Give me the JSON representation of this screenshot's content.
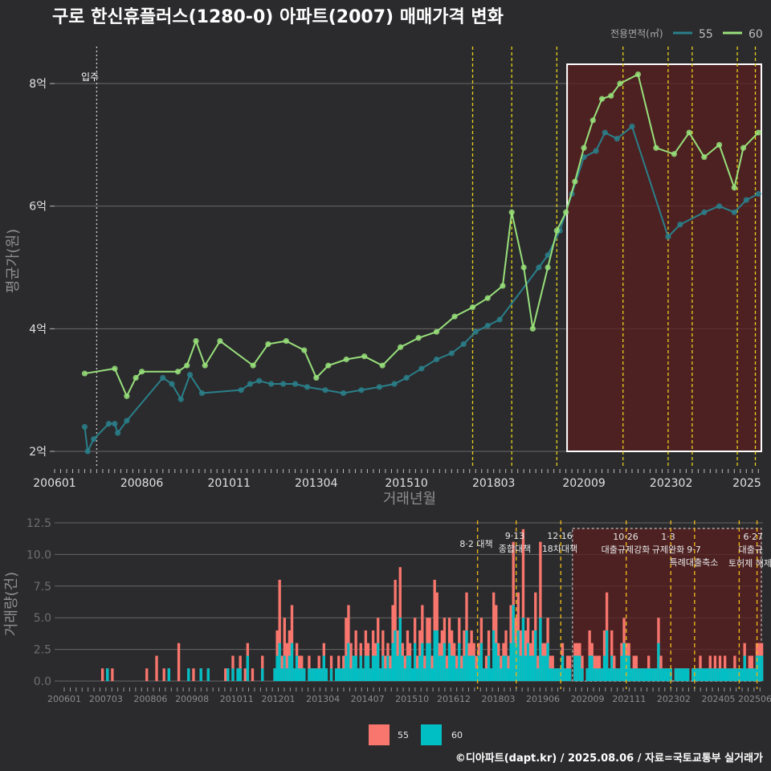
{
  "title": "구로 한신휴플러스(1280-0) 아파트(2007) 매매가격 변화",
  "footer": "©디아파트(dapt.kr) / 2025.08.06 / 자료=국토교통부 실거래가",
  "colors": {
    "bg": "#2b2b2d",
    "series55_line": "#2a7f8a",
    "series60_line": "#98e07a",
    "bar55": "#f8766d",
    "bar60": "#00bfc4",
    "policy_line": "#e6d11a",
    "highlight": "#5a1f1f"
  },
  "chart_data": [
    {
      "type": "line",
      "title": "구로 한신휴플러스(1280-0) 아파트(2007) 매매가격 변화",
      "xlabel": "거래년월",
      "ylabel": "평균가(원)",
      "x_ticks": [
        "200601",
        "200806",
        "201011",
        "201304",
        "201510",
        "201803",
        "202009",
        "202302",
        "2025"
      ],
      "y_ticks": [
        "2억",
        "4억",
        "6억",
        "8억"
      ],
      "ylim": [
        2,
        8.6
      ],
      "y_unit": "억",
      "legend": {
        "title": "전용면적(㎡)",
        "position": "top-right",
        "entries": [
          "55",
          "60"
        ]
      },
      "vlines": [
        {
          "date": "2007-03",
          "label": "입주",
          "style": "dotted-white"
        },
        {
          "date": "2017-08",
          "style": "dashed-yellow"
        },
        {
          "date": "2018-09",
          "style": "dashed-yellow"
        },
        {
          "date": "2019-12",
          "style": "dashed-yellow"
        },
        {
          "date": "2021-10",
          "style": "dashed-yellow"
        },
        {
          "date": "2023-01",
          "style": "dashed-yellow"
        },
        {
          "date": "2023-09",
          "style": "dashed-yellow"
        },
        {
          "date": "2024-12",
          "style": "dashed-yellow"
        },
        {
          "date": "2025-06",
          "style": "dashed-yellow"
        }
      ],
      "highlight_range": [
        "2020-05",
        "2025-08"
      ],
      "series": [
        {
          "name": "55",
          "points": [
            [
              "2006-11",
              2.4
            ],
            [
              "2006-12",
              2.0
            ],
            [
              "2007-02",
              2.2
            ],
            [
              "2007-07",
              2.45
            ],
            [
              "2007-09",
              2.45
            ],
            [
              "2007-10",
              2.3
            ],
            [
              "2008-01",
              2.5
            ],
            [
              "2009-01",
              3.2
            ],
            [
              "2009-04",
              3.1
            ],
            [
              "2009-07",
              2.85
            ],
            [
              "2009-10",
              3.25
            ],
            [
              "2010-02",
              2.95
            ],
            [
              "2011-03",
              3.0
            ],
            [
              "2011-06",
              3.1
            ],
            [
              "2011-09",
              3.15
            ],
            [
              "2012-01",
              3.1
            ],
            [
              "2012-05",
              3.1
            ],
            [
              "2012-09",
              3.1
            ],
            [
              "2013-01",
              3.05
            ],
            [
              "2013-07",
              3.0
            ],
            [
              "2014-01",
              2.95
            ],
            [
              "2014-07",
              3.0
            ],
            [
              "2015-01",
              3.05
            ],
            [
              "2015-06",
              3.1
            ],
            [
              "2015-10",
              3.2
            ],
            [
              "2016-03",
              3.35
            ],
            [
              "2016-08",
              3.5
            ],
            [
              "2017-01",
              3.6
            ],
            [
              "2017-05",
              3.75
            ],
            [
              "2017-09",
              3.95
            ],
            [
              "2018-01",
              4.05
            ],
            [
              "2018-05",
              4.15
            ],
            [
              "2019-06",
              5.0
            ],
            [
              "2019-09",
              5.2
            ],
            [
              "2020-01",
              5.6
            ],
            [
              "2020-05",
              6.2
            ],
            [
              "2020-09",
              6.8
            ],
            [
              "2021-01",
              6.9
            ],
            [
              "2021-04",
              7.2
            ],
            [
              "2021-08",
              7.1
            ],
            [
              "2022-01",
              7.3
            ],
            [
              "2023-01",
              5.5
            ],
            [
              "2023-05",
              5.7
            ],
            [
              "2024-01",
              5.9
            ],
            [
              "2024-06",
              6.0
            ],
            [
              "2024-11",
              5.9
            ],
            [
              "2025-03",
              6.1
            ],
            [
              "2025-07",
              6.2
            ]
          ]
        },
        {
          "name": "60",
          "points": [
            [
              "2006-11",
              3.27
            ],
            [
              "2007-09",
              3.35
            ],
            [
              "2008-01",
              2.9
            ],
            [
              "2008-04",
              3.2
            ],
            [
              "2008-06",
              3.3
            ],
            [
              "2009-06",
              3.3
            ],
            [
              "2009-09",
              3.4
            ],
            [
              "2009-12",
              3.8
            ],
            [
              "2010-03",
              3.4
            ],
            [
              "2010-08",
              3.8
            ],
            [
              "2011-07",
              3.4
            ],
            [
              "2011-12",
              3.75
            ],
            [
              "2012-06",
              3.8
            ],
            [
              "2012-12",
              3.65
            ],
            [
              "2013-04",
              3.2
            ],
            [
              "2013-08",
              3.4
            ],
            [
              "2014-02",
              3.5
            ],
            [
              "2014-08",
              3.55
            ],
            [
              "2015-02",
              3.4
            ],
            [
              "2015-08",
              3.7
            ],
            [
              "2016-02",
              3.85
            ],
            [
              "2016-08",
              3.95
            ],
            [
              "2017-02",
              4.2
            ],
            [
              "2017-08",
              4.35
            ],
            [
              "2018-01",
              4.5
            ],
            [
              "2018-06",
              4.7
            ],
            [
              "2018-09",
              5.9
            ],
            [
              "2019-01",
              5.0
            ],
            [
              "2019-04",
              4.0
            ],
            [
              "2019-09",
              5.0
            ],
            [
              "2019-12",
              5.6
            ],
            [
              "2020-03",
              5.9
            ],
            [
              "2020-06",
              6.4
            ],
            [
              "2020-09",
              6.95
            ],
            [
              "2020-12",
              7.4
            ],
            [
              "2021-03",
              7.75
            ],
            [
              "2021-06",
              7.8
            ],
            [
              "2021-09",
              8.0
            ],
            [
              "2022-03",
              8.15
            ],
            [
              "2022-09",
              6.95
            ],
            [
              "2023-03",
              6.85
            ],
            [
              "2023-08",
              7.2
            ],
            [
              "2024-01",
              6.8
            ],
            [
              "2024-06",
              7.0
            ],
            [
              "2024-11",
              6.3
            ],
            [
              "2025-02",
              6.95
            ],
            [
              "2025-07",
              7.2
            ]
          ]
        }
      ]
    },
    {
      "type": "bar",
      "ylabel": "거래량(건)",
      "y_ticks": [
        "0.0",
        "2.5",
        "5.0",
        "7.5",
        "10.0",
        "12.5"
      ],
      "ylim": [
        0,
        12.5
      ],
      "x_ticks": [
        "200601",
        "200703",
        "200806",
        "200908",
        "201011",
        "201201",
        "201304",
        "201407",
        "201510",
        "201612",
        "201803",
        "201906",
        "202009",
        "202111",
        "202302",
        "202405",
        "202506"
      ],
      "legend": {
        "position": "bottom",
        "entries": [
          "55",
          "60"
        ]
      },
      "policy_annotations": [
        {
          "date": "2017-08",
          "lines": [
            "8·2 대책"
          ]
        },
        {
          "date": "2018-09",
          "lines": [
            "9·13",
            "종합대책"
          ]
        },
        {
          "date": "2019-12",
          "lines": [
            "12·16",
            "18차대책"
          ]
        },
        {
          "date": "2021-10",
          "lines": [
            "10·26",
            "대출규제강화"
          ]
        },
        {
          "date": "2023-01",
          "lines": [
            "1·3",
            "규제완화"
          ]
        },
        {
          "date": "2023-09",
          "lines": [
            "9·7",
            "특례대출축소"
          ]
        },
        {
          "date": "2024-12",
          "lines": [
            "토허제 해제"
          ]
        },
        {
          "date": "2025-06",
          "lines": [
            "6·27",
            "대출규"
          ]
        }
      ],
      "series": [
        {
          "name": "55",
          "monthly_counts_note": "monthly transaction counts (estimated)",
          "values_key": "bars55"
        },
        {
          "name": "60",
          "values_key": "bars60"
        }
      ],
      "bars55": [
        0,
        0,
        0,
        0,
        0,
        0,
        0,
        0,
        0,
        0,
        0,
        0,
        0,
        0,
        0,
        1,
        0,
        1,
        0,
        1,
        0,
        0,
        0,
        0,
        0,
        0,
        0,
        0,
        0,
        0,
        0,
        0,
        0,
        1,
        0,
        0,
        0,
        2,
        0,
        0,
        1,
        0,
        1,
        0,
        0,
        0,
        3,
        0,
        0,
        0,
        1,
        0,
        1,
        0,
        0,
        1,
        0,
        0,
        1,
        0,
        0,
        0,
        0,
        0,
        0,
        1,
        1,
        0,
        2,
        0,
        1,
        2,
        0,
        1,
        3,
        0,
        1,
        0,
        0,
        0,
        2,
        0,
        0,
        0,
        0,
        1,
        4,
        8,
        2,
        5,
        3,
        4,
        6,
        1,
        3,
        2,
        2,
        1,
        0,
        2,
        1,
        1,
        1,
        2,
        1,
        3,
        1,
        0,
        2,
        0,
        1,
        2,
        1,
        2,
        5,
        6,
        3,
        2,
        4,
        1,
        3,
        1,
        4,
        3,
        1,
        4,
        3,
        5,
        1,
        4,
        2,
        3,
        2,
        6,
        8,
        4,
        9,
        3,
        2,
        4,
        3,
        1,
        5,
        2,
        4,
        6,
        2,
        5,
        5,
        2,
        8,
        7,
        3,
        4,
        5,
        2,
        5,
        4,
        3,
        2,
        5,
        2,
        4,
        7,
        3,
        4,
        3,
        2,
        3,
        5,
        1,
        2,
        4,
        1,
        7,
        6,
        3,
        2,
        3,
        4,
        2,
        6,
        11,
        5,
        7,
        4,
        12,
        4,
        5,
        3,
        4,
        7,
        2,
        11,
        3,
        3,
        5,
        2,
        2,
        1,
        1,
        1,
        3,
        1,
        2,
        2,
        0,
        3,
        3,
        3,
        2,
        0,
        1,
        4,
        3,
        2,
        2,
        2,
        1,
        4,
        7,
        1,
        4,
        2,
        1,
        1,
        3,
        5,
        3,
        3,
        1,
        2,
        2,
        1,
        1,
        1,
        1,
        2,
        1,
        1,
        1,
        5,
        2,
        1,
        1,
        1,
        1,
        0,
        1,
        1,
        1,
        1,
        1,
        1,
        0,
        1,
        1,
        1,
        2,
        1,
        1,
        1,
        2,
        1,
        2,
        1,
        2,
        1,
        2,
        1,
        1,
        1,
        2,
        1,
        1,
        1,
        3,
        1,
        2,
        2,
        1,
        3,
        3,
        3
      ],
      "bars60": [
        0,
        0,
        0,
        0,
        0,
        0,
        0,
        0,
        0,
        0,
        0,
        0,
        0,
        0,
        0,
        0,
        0,
        1,
        0,
        0,
        0,
        0,
        0,
        0,
        0,
        0,
        0,
        0,
        0,
        0,
        0,
        0,
        0,
        0,
        0,
        0,
        0,
        0,
        0,
        0,
        0,
        0,
        1,
        0,
        0,
        0,
        0,
        0,
        0,
        0,
        1,
        0,
        0,
        0,
        0,
        1,
        0,
        0,
        1,
        0,
        0,
        0,
        0,
        0,
        0,
        0,
        1,
        0,
        1,
        0,
        1,
        1,
        0,
        0,
        2,
        0,
        0,
        0,
        0,
        0,
        1,
        0,
        0,
        0,
        0,
        1,
        2,
        3,
        1,
        2,
        1,
        2,
        3,
        1,
        2,
        1,
        1,
        1,
        0,
        1,
        1,
        1,
        1,
        1,
        1,
        2,
        1,
        0,
        1,
        0,
        1,
        1,
        1,
        1,
        2,
        3,
        1,
        2,
        2,
        1,
        2,
        1,
        2,
        2,
        1,
        2,
        2,
        3,
        1,
        2,
        1,
        2,
        1,
        3,
        4,
        2,
        5,
        2,
        1,
        2,
        2,
        1,
        3,
        1,
        2,
        3,
        1,
        3,
        3,
        1,
        4,
        4,
        2,
        2,
        3,
        1,
        3,
        2,
        2,
        1,
        3,
        1,
        2,
        4,
        2,
        2,
        2,
        1,
        2,
        3,
        1,
        1,
        2,
        1,
        4,
        3,
        2,
        1,
        2,
        2,
        1,
        3,
        6,
        3,
        4,
        2,
        5,
        2,
        3,
        2,
        2,
        4,
        1,
        5,
        2,
        2,
        3,
        1,
        1,
        1,
        1,
        1,
        2,
        1,
        1,
        1,
        0,
        2,
        2,
        2,
        1,
        0,
        1,
        2,
        2,
        1,
        1,
        1,
        1,
        2,
        4,
        1,
        2,
        1,
        1,
        1,
        2,
        3,
        2,
        2,
        1,
        1,
        1,
        1,
        1,
        1,
        1,
        1,
        1,
        1,
        1,
        3,
        1,
        1,
        1,
        1,
        1,
        0,
        1,
        1,
        1,
        1,
        1,
        1,
        0,
        1,
        1,
        1,
        1,
        1,
        1,
        1,
        1,
        1,
        1,
        1,
        1,
        1,
        1,
        1,
        1,
        1,
        1,
        1,
        1,
        1,
        2,
        1,
        1,
        1,
        1,
        2,
        2,
        2
      ]
    }
  ]
}
